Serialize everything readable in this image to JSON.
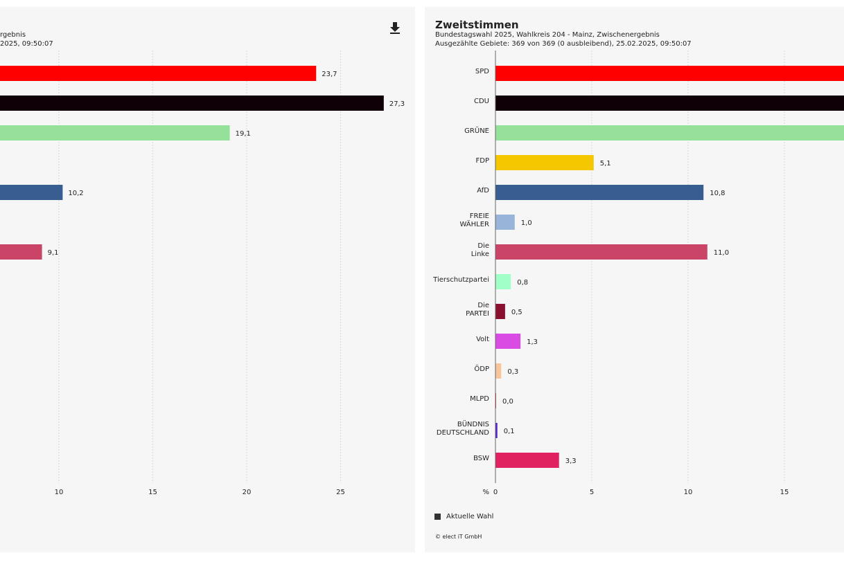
{
  "left_panel": {
    "subtitle_line1": "rgebnis",
    "subtitle_line2": "2025, 09:50:07",
    "download_icon": "download-icon"
  },
  "right_panel": {
    "title": "Zweitstimmen",
    "subtitle_line1": "Bundestagswahl 2025, Wahlkreis 204 - Mainz, Zwischenergebnis",
    "subtitle_line2": "Ausgezählte Gebiete: 369 von 369 (0 ausbleibend), 25.02.2025, 09:50:07",
    "legend_label": "Aktuelle Wahl",
    "copyright": "© elect iT GmbH"
  },
  "chart_data": [
    {
      "type": "bar",
      "orientation": "horizontal",
      "x_ticks": [
        "10",
        "15",
        "20",
        "25"
      ],
      "bars": [
        {
          "value": 23.7,
          "label": "23,7",
          "color": "#ff0000"
        },
        {
          "value": 27.3,
          "label": "27,3",
          "color": "#0f0008"
        },
        {
          "value": 19.1,
          "label": "19,1",
          "color": "#95e19a"
        },
        {
          "value": 10.2,
          "label": "10,2",
          "color": "#375d91"
        },
        {
          "value": 9.1,
          "label": "9,1",
          "color": "#c94466"
        }
      ]
    },
    {
      "type": "bar",
      "orientation": "horizontal",
      "title": "Zweitstimmen",
      "axis_unit": "%",
      "x_ticks": [
        "0",
        "5",
        "10",
        "15"
      ],
      "legend": [
        "Aktuelle Wahl"
      ],
      "bars": [
        {
          "party": "SPD",
          "value": null,
          "label": "",
          "color": "#ff0000"
        },
        {
          "party": "CDU",
          "value": null,
          "label": "",
          "color": "#0f0008"
        },
        {
          "party": "GRÜNE",
          "value": null,
          "label": "",
          "color": "#95e19a"
        },
        {
          "party": "FDP",
          "value": 5.1,
          "label": "5,1",
          "color": "#f4c700"
        },
        {
          "party": "AfD",
          "value": 10.8,
          "label": "10,8",
          "color": "#375d91"
        },
        {
          "party": "FREIE WÄHLER",
          "value": 1.0,
          "label": "1,0",
          "color": "#98b5d9"
        },
        {
          "party": "Die Linke",
          "value": 11.0,
          "label": "11,0",
          "color": "#c94466"
        },
        {
          "party": "Tierschutzpartei",
          "value": 0.8,
          "label": "0,8",
          "color": "#a1ffc8"
        },
        {
          "party": "Die PARTEI",
          "value": 0.5,
          "label": "0,5",
          "color": "#8b1030"
        },
        {
          "party": "Volt",
          "value": 1.3,
          "label": "1,3",
          "color": "#d94ce3"
        },
        {
          "party": "ÖDP",
          "value": 0.3,
          "label": "0,3",
          "color": "#f8c59a"
        },
        {
          "party": "MLPD",
          "value": 0.0,
          "label": "0,0",
          "color": "#e63a3a"
        },
        {
          "party": "BÜNDNIS DEUTSCHLAND",
          "value": 0.1,
          "label": "0,1",
          "color": "#5b1fd1"
        },
        {
          "party": "BSW",
          "value": 3.3,
          "label": "3,3",
          "color": "#e12260"
        }
      ]
    }
  ]
}
